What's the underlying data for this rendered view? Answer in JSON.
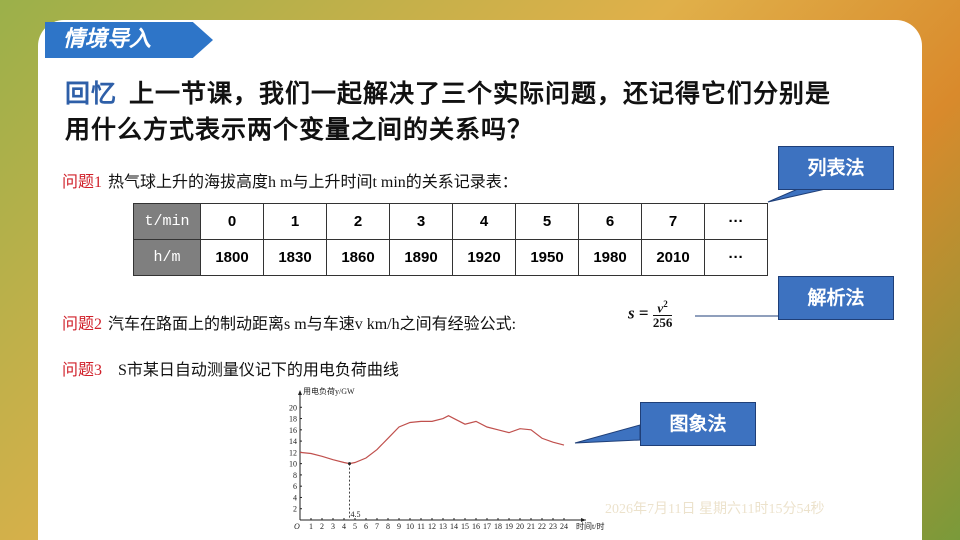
{
  "header": {
    "tag": "情境导入"
  },
  "intro": {
    "label": "回忆",
    "text": "上一节课，我们一起解决了三个实际问题，还记得它们分别是用什么方式表示两个变量之间的关系吗？"
  },
  "problem1": {
    "label": "问题1",
    "text": "热气球上升的海拔高度h m与上升时间t min的关系记录表：",
    "table": {
      "rows": [
        [
          "t/min",
          0,
          1,
          2,
          3,
          4,
          5,
          6,
          7,
          "···"
        ],
        [
          "h/m",
          1800,
          1830,
          1860,
          1890,
          1920,
          1950,
          1980,
          2010,
          "···"
        ]
      ]
    },
    "method": "列表法"
  },
  "problem2": {
    "label": "问题2",
    "text": "汽车在路面上的制动距离s m与车速v km/h之间有经验公式:",
    "formula": {
      "lhs": "s",
      "eq": "=",
      "num": "v",
      "exp": "2",
      "den": "256"
    },
    "method": "解析法"
  },
  "problem3": {
    "label": "问题3",
    "text": "S市某日自动测量仪记下的用电负荷曲线",
    "chart": {
      "type": "line",
      "y_label": "用电负荷y/GW",
      "x_label": "时间t/时",
      "origin_label": "O",
      "x": [
        0,
        1,
        2,
        3,
        4,
        4.5,
        5,
        6,
        7,
        8,
        9,
        10,
        11,
        12,
        13,
        13.5,
        14,
        15,
        16,
        17,
        18,
        19,
        20,
        21,
        22,
        23,
        24
      ],
      "values": [
        12,
        11.8,
        11.3,
        10.7,
        10.2,
        10,
        10.2,
        11,
        12.5,
        14.5,
        16.5,
        17.3,
        17.5,
        17.5,
        18,
        18.5,
        18,
        17,
        17.5,
        16.5,
        16,
        15.5,
        16.2,
        16,
        14.5,
        13.8,
        13.3
      ],
      "color": "#c0504d",
      "xlim": [
        0,
        26
      ],
      "ylim": [
        0,
        22
      ],
      "xticks": [
        1,
        2,
        3,
        4,
        5,
        6,
        7,
        8,
        9,
        10,
        11,
        12,
        13,
        14,
        15,
        16,
        17,
        18,
        19,
        20,
        21,
        22,
        23,
        24
      ],
      "yticks": [
        2,
        4,
        6,
        8,
        10,
        12,
        14,
        16,
        18,
        20
      ],
      "annotation": 4.5
    },
    "method": "图象法"
  },
  "timestamp": "2026年7月11日 星期六11时15分54秒"
}
